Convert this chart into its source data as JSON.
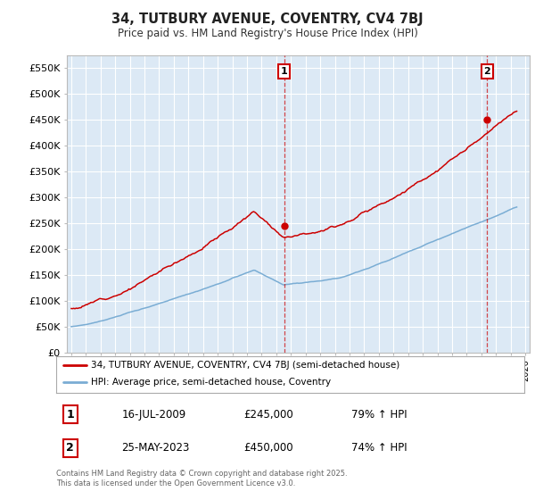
{
  "title": "34, TUTBURY AVENUE, COVENTRY, CV4 7BJ",
  "subtitle": "Price paid vs. HM Land Registry's House Price Index (HPI)",
  "ylabel_ticks": [
    "£0",
    "£50K",
    "£100K",
    "£150K",
    "£200K",
    "£250K",
    "£300K",
    "£350K",
    "£400K",
    "£450K",
    "£500K",
    "£550K"
  ],
  "ytick_values": [
    0,
    50000,
    100000,
    150000,
    200000,
    250000,
    300000,
    350000,
    400000,
    450000,
    500000,
    550000
  ],
  "ylim": [
    0,
    575000
  ],
  "xlim_start": 1994.7,
  "xlim_end": 2026.3,
  "red_color": "#cc0000",
  "blue_color": "#7aadd4",
  "marker1_x": 2009.54,
  "marker1_y": 245000,
  "marker2_x": 2023.4,
  "marker2_y": 450000,
  "marker1_label": "1",
  "marker2_label": "2",
  "annotation1_date": "16-JUL-2009",
  "annotation1_price": "£245,000",
  "annotation1_hpi": "79% ↑ HPI",
  "annotation2_date": "25-MAY-2023",
  "annotation2_price": "£450,000",
  "annotation2_hpi": "74% ↑ HPI",
  "legend_line1": "34, TUTBURY AVENUE, COVENTRY, CV4 7BJ (semi-detached house)",
  "legend_line2": "HPI: Average price, semi-detached house, Coventry",
  "footer": "Contains HM Land Registry data © Crown copyright and database right 2025.\nThis data is licensed under the Open Government Licence v3.0.",
  "fig_bg_color": "#ffffff",
  "plot_bg_color": "#dce9f5",
  "grid_color": "#ffffff"
}
